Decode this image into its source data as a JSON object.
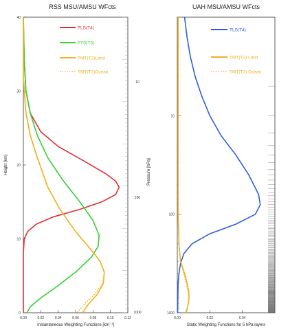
{
  "chart_data": [
    {
      "type": "line",
      "title": "RSS MSU/AMSU WFcts",
      "xlabel": "Instantaneous Weighting Functions [km⁻¹]",
      "ylabel": "Height [km]",
      "right_ylabel": "Pressure [hPa]",
      "xlim": [
        0,
        0.12
      ],
      "ylim": [
        0,
        40
      ],
      "x_ticks": [
        "0.00",
        "0.02",
        "0.04",
        "0.06",
        "0.08",
        "0.10",
        "0.12"
      ],
      "y_ticks": [
        "0",
        "10",
        "20",
        "30",
        "40"
      ],
      "right_ticks": [
        "10",
        "100",
        "1000"
      ],
      "legend": "top-right",
      "series": [
        {
          "name": "TLS(T4)",
          "color": "#e03030",
          "style": "solid",
          "points": [
            [
              0.0,
              40
            ],
            [
              0.001,
              34
            ],
            [
              0.003,
              30
            ],
            [
              0.008,
              27
            ],
            [
              0.02,
              24.5
            ],
            [
              0.04,
              22.5
            ],
            [
              0.07,
              20.5
            ],
            [
              0.095,
              18.8
            ],
            [
              0.106,
              17.8
            ],
            [
              0.11,
              17.0
            ],
            [
              0.106,
              16.0
            ],
            [
              0.09,
              15.0
            ],
            [
              0.065,
              14.0
            ],
            [
              0.035,
              13.0
            ],
            [
              0.015,
              12.0
            ],
            [
              0.005,
              11.0
            ],
            [
              0.001,
              10.0
            ],
            [
              0.0,
              8.0
            ],
            [
              0.0,
              0
            ]
          ]
        },
        {
          "name": "TTS(T3)",
          "color": "#30d030",
          "style": "solid",
          "points": [
            [
              0.0,
              40
            ],
            [
              0.001,
              34
            ],
            [
              0.003,
              30
            ],
            [
              0.008,
              27
            ],
            [
              0.016,
              24
            ],
            [
              0.028,
              21
            ],
            [
              0.045,
              18
            ],
            [
              0.065,
              15
            ],
            [
              0.08,
              12.5
            ],
            [
              0.087,
              10.5
            ],
            [
              0.086,
              9.0
            ],
            [
              0.078,
              7.5
            ],
            [
              0.06,
              5.5
            ],
            [
              0.038,
              3.5
            ],
            [
              0.02,
              2.0
            ],
            [
              0.008,
              0.8
            ],
            [
              0.004,
              0
            ]
          ]
        },
        {
          "name": "TMT(T2)Land",
          "color": "#f0b020",
          "style": "solid",
          "points": [
            [
              0.0,
              40
            ],
            [
              0.0,
              32
            ],
            [
              0.001,
              30
            ],
            [
              0.003,
              27
            ],
            [
              0.008,
              24
            ],
            [
              0.016,
              21
            ],
            [
              0.028,
              17
            ],
            [
              0.042,
              14
            ],
            [
              0.06,
              11
            ],
            [
              0.078,
              8.5
            ],
            [
              0.088,
              7.0
            ],
            [
              0.093,
              5.5
            ],
            [
              0.092,
              4.0
            ],
            [
              0.085,
              2.5
            ],
            [
              0.075,
              1.2
            ],
            [
              0.068,
              0
            ]
          ]
        },
        {
          "name": "TMT(T2)Ocean",
          "color": "#f0b020",
          "style": "dotted",
          "points": [
            [
              0.0,
              40
            ],
            [
              0.0,
              32
            ],
            [
              0.001,
              30
            ],
            [
              0.003,
              27
            ],
            [
              0.008,
              24
            ],
            [
              0.016,
              21
            ],
            [
              0.028,
              17
            ],
            [
              0.042,
              14
            ],
            [
              0.06,
              11
            ],
            [
              0.078,
              8.5
            ],
            [
              0.088,
              7.0
            ],
            [
              0.093,
              5.5
            ],
            [
              0.091,
              4.0
            ],
            [
              0.082,
              2.5
            ],
            [
              0.07,
              1.2
            ],
            [
              0.062,
              0
            ]
          ]
        }
      ]
    },
    {
      "type": "line",
      "title": "UAH MSU/AMSU WFcts",
      "xlabel": "Static Weighting Functions for 5 hPa layers",
      "ylabel": "Pressure [hPa]",
      "x_scale": "linear",
      "y_scale": "log",
      "xlim": [
        0,
        0.06
      ],
      "ylim": [
        1000,
        1
      ],
      "x_ticks": [
        "0.00",
        "0.02",
        "0.04"
      ],
      "y_ticks": [
        "10",
        "100",
        "1000"
      ],
      "legend": "top-right",
      "series": [
        {
          "name": "TLS(T4)",
          "color": "#2860e0",
          "style": "solid",
          "points": [
            [
              0.0045,
              1
            ],
            [
              0.006,
              1.6
            ],
            [
              0.008,
              2.5
            ],
            [
              0.011,
              4
            ],
            [
              0.015,
              6.3
            ],
            [
              0.02,
              10
            ],
            [
              0.027,
              16
            ],
            [
              0.036,
              25
            ],
            [
              0.044,
              40
            ],
            [
              0.05,
              63
            ],
            [
              0.051,
              80
            ],
            [
              0.048,
              100
            ],
            [
              0.036,
              126
            ],
            [
              0.02,
              158
            ],
            [
              0.009,
              200
            ],
            [
              0.004,
              251
            ],
            [
              0.002,
              316
            ],
            [
              0.001,
              398
            ],
            [
              0.0005,
              500
            ],
            [
              0.0002,
              1000
            ]
          ]
        },
        {
          "name": "TMT(T2) Land",
          "color": "#f0b020",
          "style": "solid",
          "points": [
            [
              0.0005,
              1
            ],
            [
              0.0005,
              10
            ],
            [
              0.0005,
              100
            ],
            [
              0.001,
              200
            ],
            [
              0.002,
              300
            ],
            [
              0.0045,
              400
            ],
            [
              0.006,
              500
            ],
            [
              0.007,
              600
            ],
            [
              0.0072,
              700
            ],
            [
              0.0068,
              800
            ],
            [
              0.0062,
              900
            ],
            [
              0.0055,
              1000
            ]
          ]
        },
        {
          "name": "TMT(T2) Ocean",
          "color": "#f0b020",
          "style": "dotted",
          "points": [
            [
              0.0005,
              1
            ],
            [
              0.0005,
              10
            ],
            [
              0.0005,
              100
            ],
            [
              0.001,
              200
            ],
            [
              0.002,
              300
            ],
            [
              0.004,
              400
            ],
            [
              0.0055,
              500
            ],
            [
              0.0065,
              600
            ],
            [
              0.007,
              700
            ],
            [
              0.0068,
              800
            ],
            [
              0.006,
              900
            ],
            [
              0.005,
              1000
            ]
          ]
        }
      ]
    }
  ]
}
